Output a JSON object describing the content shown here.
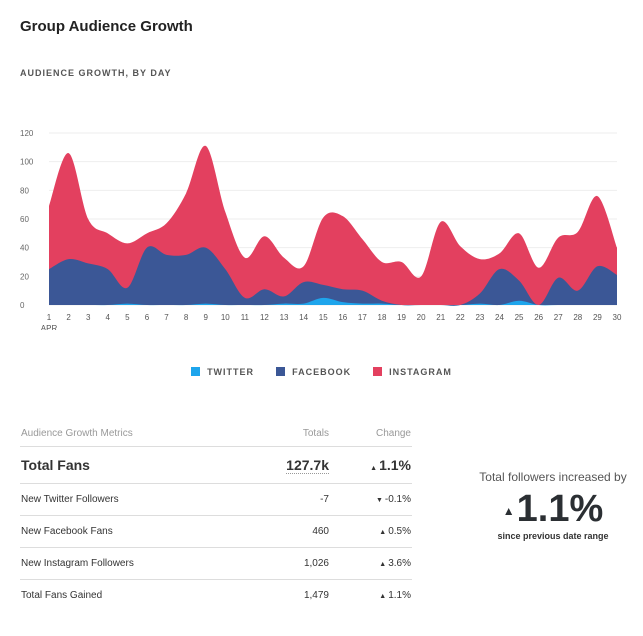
{
  "title": "Group Audience Growth",
  "chart_data": {
    "type": "area",
    "stacked": true,
    "title": "AUDIENCE GROWTH, BY DAY",
    "x": [
      1,
      2,
      3,
      4,
      5,
      6,
      7,
      8,
      9,
      10,
      11,
      12,
      13,
      14,
      15,
      16,
      17,
      18,
      19,
      20,
      21,
      22,
      23,
      24,
      25,
      26,
      27,
      28,
      29,
      30
    ],
    "x_month_label": "APR",
    "yticks": [
      0,
      20,
      40,
      60,
      80,
      100,
      120
    ],
    "ylim": [
      0,
      120
    ],
    "grid": true,
    "legend": "bottom",
    "series": [
      {
        "name": "TWITTER",
        "color": "#1ea5ec",
        "values": [
          0,
          0,
          0,
          0,
          1,
          0,
          0,
          0,
          1,
          0,
          0,
          0,
          1,
          1,
          5,
          2,
          1,
          1,
          0,
          0,
          0,
          0,
          1,
          0,
          3,
          0,
          0,
          0,
          0,
          0
        ]
      },
      {
        "name": "FACEBOOK",
        "color": "#3b5796",
        "values": [
          25,
          32,
          29,
          25,
          11,
          40,
          35,
          35,
          39,
          25,
          5,
          11,
          5,
          15,
          9,
          9,
          9,
          2,
          0,
          0,
          0,
          0,
          7,
          25,
          14,
          0,
          19,
          10,
          27,
          21
        ]
      },
      {
        "name": "INSTAGRAM",
        "color": "#e3405f",
        "values": [
          44,
          74,
          31,
          25,
          31,
          10,
          22,
          43,
          71,
          40,
          28,
          37,
          27,
          11,
          47,
          51,
          36,
          27,
          30,
          20,
          58,
          41,
          24,
          11,
          33,
          26,
          28,
          41,
          49,
          19
        ]
      }
    ]
  },
  "table": {
    "headers": [
      "Audience Growth Metrics",
      "Totals",
      "Change"
    ],
    "rows": [
      {
        "label": "Total Fans",
        "total": "127.7k",
        "dir": "up",
        "change": "1.1%"
      },
      {
        "label": "New Twitter Followers",
        "total": "-7",
        "dir": "down",
        "change": "-0.1%"
      },
      {
        "label": "New Facebook Fans",
        "total": "460",
        "dir": "up",
        "change": "0.5%"
      },
      {
        "label": "New Instagram Followers",
        "total": "1,026",
        "dir": "up",
        "change": "3.6%"
      },
      {
        "label": "Total Fans Gained",
        "total": "1,479",
        "dir": "up",
        "change": "1.1%"
      }
    ]
  },
  "summary": {
    "line1": "Total followers increased by",
    "value": "1.1%",
    "line3": "since previous date range"
  }
}
